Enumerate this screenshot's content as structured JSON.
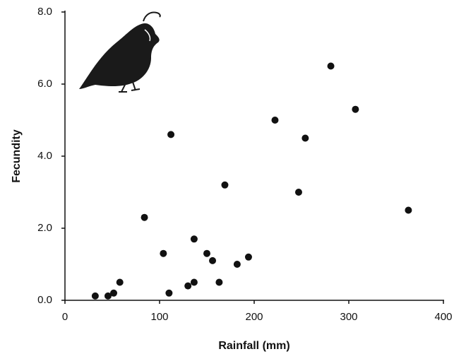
{
  "chart_data": {
    "type": "scatter",
    "x_label": "Rainfall (mm)",
    "y_label": "Fecundity",
    "xlim": [
      0,
      400
    ],
    "ylim": [
      0,
      8
    ],
    "xticks": [
      0,
      100,
      200,
      300,
      400
    ],
    "yticks": [
      {
        "value": 0,
        "label": "0.0"
      },
      {
        "value": 2,
        "label": "2.0"
      },
      {
        "value": 4,
        "label": "4.0"
      },
      {
        "value": 6,
        "label": "6.0"
      },
      {
        "value": 8,
        "label": "8.0"
      }
    ],
    "color": "#111111",
    "x": [
      32,
      45.5,
      51.5,
      58,
      84,
      104,
      110,
      112,
      130,
      136.5,
      136.5,
      150,
      156,
      163,
      169,
      182,
      194,
      222,
      247,
      254,
      281,
      307,
      363
    ],
    "values": [
      0.12,
      0.12,
      0.2,
      0.5,
      2.3,
      1.3,
      0.2,
      4.6,
      0.4,
      0.5,
      1.7,
      1.3,
      1.1,
      0.5,
      3.2,
      1.0,
      1.2,
      5.0,
      3.0,
      4.5,
      6.5,
      5.3,
      2.5
    ]
  }
}
